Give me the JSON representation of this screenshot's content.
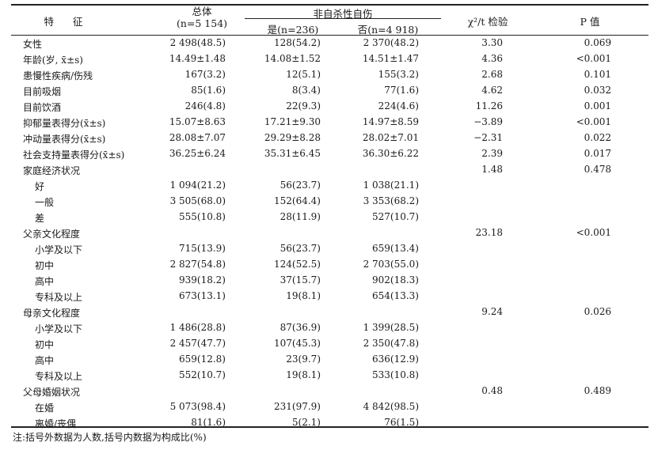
{
  "header": {
    "feature": "特 征",
    "total_label": "总体",
    "total_n": "(n=5 154)",
    "group_label": "非自杀性自伤",
    "yes_label": "是(n=236)",
    "no_label": "否(n=4 918)",
    "chi_label": "χ²/t 检验",
    "p_label": "P 值"
  },
  "rows": [
    {
      "label": "女性",
      "total": "2 498(48.5)",
      "yes": "128(54.2)",
      "no": "2 370(48.2)",
      "chi": "3.30",
      "p": "0.069",
      "sub": false
    },
    {
      "label": "年龄(岁, x̄±s)",
      "total": "14.49±1.48",
      "yes": "14.08±1.52",
      "no": "14.51±1.47",
      "chi": "4.36",
      "p": "<0.001",
      "sub": false
    },
    {
      "label": "患慢性疾病/伤残",
      "total": "167(3.2)",
      "yes": "12(5.1)",
      "no": "155(3.2)",
      "chi": "2.68",
      "p": "0.101",
      "sub": false
    },
    {
      "label": "目前吸烟",
      "total": "85(1.6)",
      "yes": "8(3.4)",
      "no": "77(1.6)",
      "chi": "4.62",
      "p": "0.032",
      "sub": false
    },
    {
      "label": "目前饮酒",
      "total": "246(4.8)",
      "yes": "22(9.3)",
      "no": "224(4.6)",
      "chi": "11.26",
      "p": "0.001",
      "sub": false
    },
    {
      "label": "抑郁量表得分(x̄±s)",
      "total": "15.07±8.63",
      "yes": "17.21±9.30",
      "no": "14.97±8.59",
      "chi": "−3.89",
      "p": "<0.001",
      "sub": false
    },
    {
      "label": "冲动量表得分(x̄±s)",
      "total": "28.08±7.07",
      "yes": "29.29±8.28",
      "no": "28.02±7.01",
      "chi": "−2.31",
      "p": "0.022",
      "sub": false
    },
    {
      "label": "社会支持量表得分(x̄±s)",
      "total": "36.25±6.24",
      "yes": "35.31±6.45",
      "no": "36.30±6.22",
      "chi": "2.39",
      "p": "0.017",
      "sub": false
    },
    {
      "label": "家庭经济状况",
      "total": "",
      "yes": "",
      "no": "",
      "chi": "1.48",
      "p": "0.478",
      "sub": false
    },
    {
      "label": "好",
      "total": "1 094(21.2)",
      "yes": "56(23.7)",
      "no": "1 038(21.1)",
      "chi": "",
      "p": "",
      "sub": true
    },
    {
      "label": "一般",
      "total": "3 505(68.0)",
      "yes": "152(64.4)",
      "no": "3 353(68.2)",
      "chi": "",
      "p": "",
      "sub": true
    },
    {
      "label": "差",
      "total": "555(10.8)",
      "yes": "28(11.9)",
      "no": "527(10.7)",
      "chi": "",
      "p": "",
      "sub": true
    },
    {
      "label": "父亲文化程度",
      "total": "",
      "yes": "",
      "no": "",
      "chi": "23.18",
      "p": "<0.001",
      "sub": false
    },
    {
      "label": "小学及以下",
      "total": "715(13.9)",
      "yes": "56(23.7)",
      "no": "659(13.4)",
      "chi": "",
      "p": "",
      "sub": true
    },
    {
      "label": "初中",
      "total": "2 827(54.8)",
      "yes": "124(52.5)",
      "no": "2 703(55.0)",
      "chi": "",
      "p": "",
      "sub": true
    },
    {
      "label": "高中",
      "total": "939(18.2)",
      "yes": "37(15.7)",
      "no": "902(18.3)",
      "chi": "",
      "p": "",
      "sub": true
    },
    {
      "label": "专科及以上",
      "total": "673(13.1)",
      "yes": "19(8.1)",
      "no": "654(13.3)",
      "chi": "",
      "p": "",
      "sub": true
    },
    {
      "label": "母亲文化程度",
      "total": "",
      "yes": "",
      "no": "",
      "chi": "9.24",
      "p": "0.026",
      "sub": false
    },
    {
      "label": "小学及以下",
      "total": "1 486(28.8)",
      "yes": "87(36.9)",
      "no": "1 399(28.5)",
      "chi": "",
      "p": "",
      "sub": true
    },
    {
      "label": "初中",
      "total": "2 457(47.7)",
      "yes": "107(45.3)",
      "no": "2 350(47.8)",
      "chi": "",
      "p": "",
      "sub": true
    },
    {
      "label": "高中",
      "total": "659(12.8)",
      "yes": "23(9.7)",
      "no": "636(12.9)",
      "chi": "",
      "p": "",
      "sub": true
    },
    {
      "label": "专科及以上",
      "total": "552(10.7)",
      "yes": "19(8.1)",
      "no": "533(10.8)",
      "chi": "",
      "p": "",
      "sub": true
    },
    {
      "label": "父母婚姻状况",
      "total": "",
      "yes": "",
      "no": "",
      "chi": "0.48",
      "p": "0.489",
      "sub": false
    },
    {
      "label": "在婚",
      "total": "5 073(98.4)",
      "yes": "231(97.9)",
      "no": "4 842(98.5)",
      "chi": "",
      "p": "",
      "sub": true
    },
    {
      "label": "离婚/丧偶",
      "total": "81(1.6)",
      "yes": "5(2.1)",
      "no": "76(1.5)",
      "chi": "",
      "p": "",
      "sub": true
    }
  ],
  "note": "注:括号外数据为人数,括号内数据为构成比(%)"
}
